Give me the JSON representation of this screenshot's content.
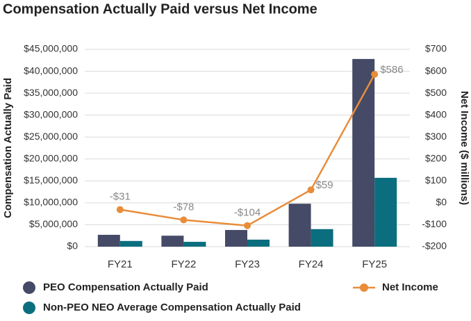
{
  "chart_data": {
    "type": "bar",
    "title": "Compensation Actually Paid versus Net Income",
    "y_label": "Compensation Actually Paid",
    "y2_label": "Net Income ($ millions)",
    "categories": [
      "FY21",
      "FY22",
      "FY23",
      "FY24",
      "FY25"
    ],
    "series": [
      {
        "name": "PEO Compensation Actually Paid",
        "type": "bar",
        "color": "#454a66",
        "values": [
          2700000,
          2500000,
          3800000,
          9800000,
          42800000
        ]
      },
      {
        "name": "Non-PEO NEO Average Compensation Actually Paid",
        "type": "bar",
        "color": "#0b6e7e",
        "values": [
          1300000,
          1100000,
          1600000,
          4000000,
          15700000
        ]
      },
      {
        "name": "Net Income",
        "type": "line",
        "axis": "y2",
        "color": "#e88d3a",
        "values": [
          -31,
          -78,
          -104,
          59,
          586
        ],
        "value_labels": [
          "-$31",
          "-$78",
          "-$104",
          "$59",
          "$586"
        ]
      }
    ],
    "ylim": [
      0,
      45000000
    ],
    "yticks": [
      {
        "value": 0,
        "label": "$0"
      },
      {
        "value": 5000000,
        "label": "$5,000,000"
      },
      {
        "value": 10000000,
        "label": "$10,000,000"
      },
      {
        "value": 15000000,
        "label": "$15,000,000"
      },
      {
        "value": 20000000,
        "label": "$20,000,000"
      },
      {
        "value": 25000000,
        "label": "$25,000,000"
      },
      {
        "value": 30000000,
        "label": "$30,000,000"
      },
      {
        "value": 35000000,
        "label": "$35,000,000"
      },
      {
        "value": 40000000,
        "label": "$40,000,000"
      },
      {
        "value": 45000000,
        "label": "$45,000,000"
      }
    ],
    "y2lim": [
      -200,
      700
    ],
    "y2ticks": [
      {
        "value": -200,
        "label": "-$200"
      },
      {
        "value": -100,
        "label": "-$100"
      },
      {
        "value": 0,
        "label": "$0"
      },
      {
        "value": 100,
        "label": "$100"
      },
      {
        "value": 200,
        "label": "$200"
      },
      {
        "value": 300,
        "label": "$300"
      },
      {
        "value": 400,
        "label": "$400"
      },
      {
        "value": 500,
        "label": "$500"
      },
      {
        "value": 600,
        "label": "$600"
      },
      {
        "value": 700,
        "label": "$700"
      }
    ],
    "grid": true
  }
}
